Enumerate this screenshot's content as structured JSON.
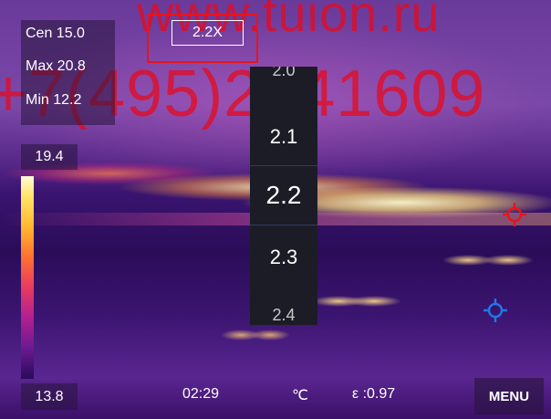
{
  "watermark": {
    "url": "www.tuion.ru",
    "phone": "+7(495)2041609"
  },
  "measurements": {
    "center": "Cen 15.0",
    "max": "Max 20.8",
    "min": "Min 12.2"
  },
  "zoom": {
    "label": "2.2X",
    "options": [
      "2.0",
      "2.1",
      "2.2",
      "2.3",
      "2.4"
    ],
    "selected": "2.2"
  },
  "scale": {
    "max": "19.4",
    "min": "13.8"
  },
  "status_bar": {
    "time": "02:29",
    "unit": "℃",
    "emissivity": "ε :0.97",
    "menu_label": "MENU"
  },
  "colors": {
    "highlight": "#e8141c",
    "hot_marker": "#e8141c",
    "cold_marker": "#1e78e6"
  },
  "icons": [
    "hot-spot-crosshair-icon",
    "cold-spot-crosshair-icon"
  ]
}
